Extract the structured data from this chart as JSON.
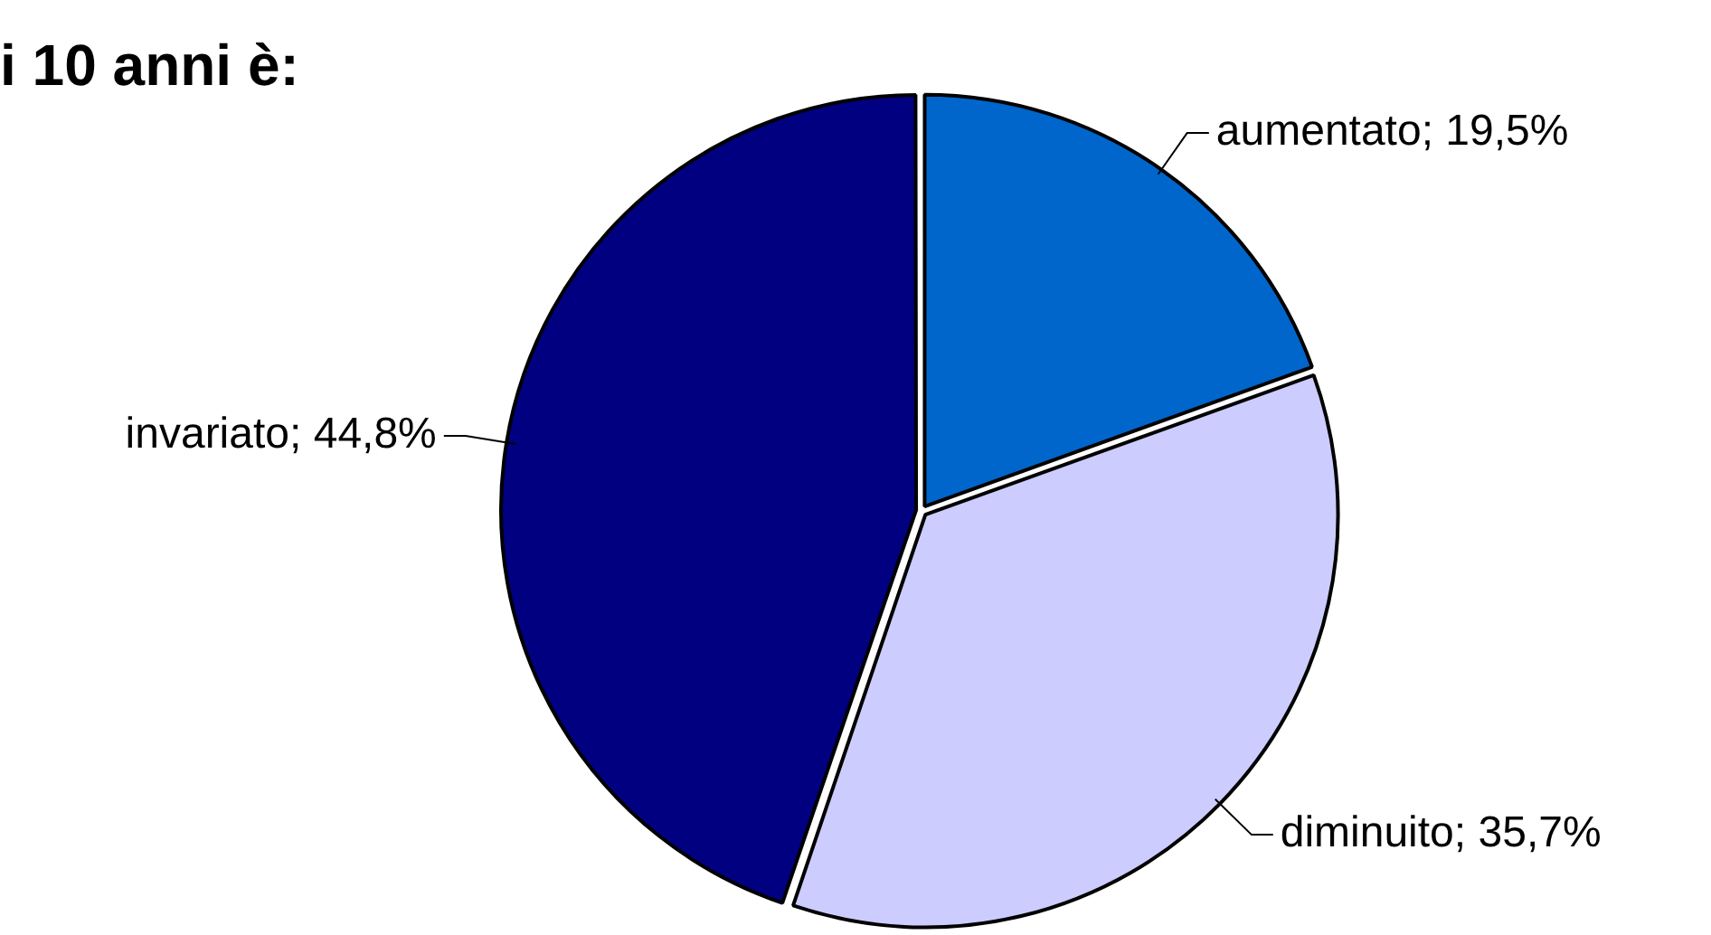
{
  "chart_data": {
    "type": "pie",
    "title": "i 10 anni è:",
    "categories": [
      "aumentato",
      "diminuito",
      "invariato"
    ],
    "values": [
      19.5,
      35.7,
      44.8
    ],
    "value_labels": [
      "19,5%",
      "35,7%",
      "44,8%"
    ],
    "colors": [
      "#0066cc",
      "#ccccff",
      "#000080"
    ],
    "legend": false
  }
}
